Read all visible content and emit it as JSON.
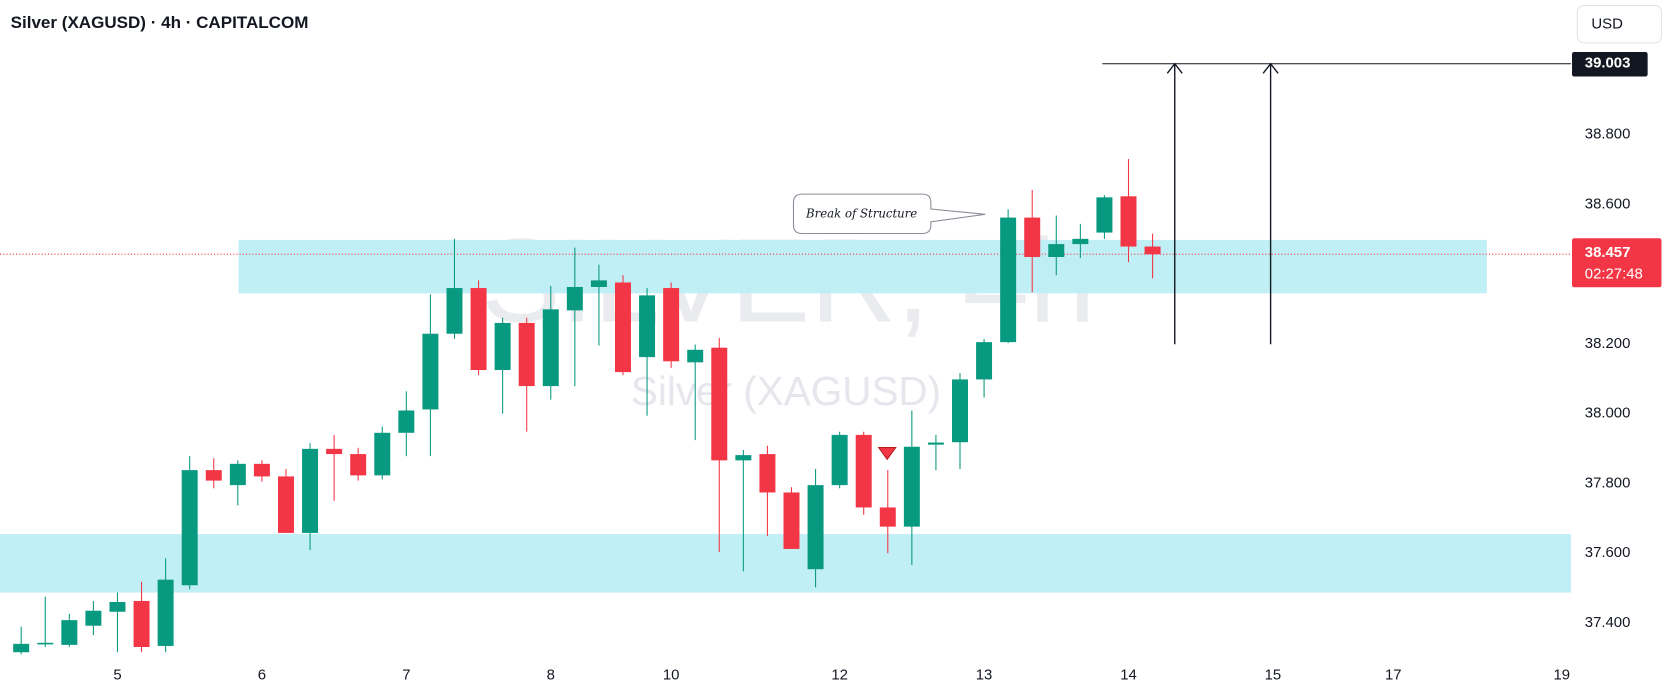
{
  "chart_data": {
    "type": "candlestick",
    "title": "Silver (XAGUSD) · 4h · CAPITALCOM",
    "currency": "USD",
    "watermark": "SILVER, 4h",
    "watermark_subtitle": "Silver (XAGUSD)",
    "annotation": "Break of Structure",
    "up_color": "#089981",
    "down_color": "#f23645",
    "zone_color": "#bdeef5",
    "open": [
      37.316,
      37.342,
      37.337,
      37.392,
      37.432,
      37.463,
      37.334,
      37.508,
      37.838,
      37.795,
      37.856,
      37.82,
      37.658,
      37.899,
      37.884,
      37.823,
      37.945,
      38.012,
      38.229,
      38.36,
      38.125,
      38.26,
      38.079,
      38.296,
      38.363,
      38.376,
      38.162,
      38.36,
      38.147,
      38.189,
      37.866,
      37.884,
      37.774,
      37.554,
      37.795,
      37.939,
      37.731,
      37.676,
      37.911,
      37.918,
      38.098,
      38.205,
      38.562,
      38.449,
      38.486,
      38.519,
      38.623,
      38.479
    ],
    "high": [
      37.389,
      37.475,
      37.426,
      37.463,
      37.487,
      37.518,
      37.585,
      37.878,
      37.872,
      37.866,
      37.866,
      37.841,
      37.915,
      37.939,
      37.902,
      37.963,
      38.064,
      38.342,
      38.501,
      38.382,
      38.275,
      38.275,
      38.366,
      38.476,
      38.427,
      38.397,
      38.36,
      38.376,
      38.198,
      38.217,
      37.896,
      37.908,
      37.789,
      37.841,
      37.948,
      37.948,
      37.838,
      38.009,
      37.939,
      38.116,
      38.214,
      38.586,
      38.641,
      38.568,
      38.544,
      38.626,
      38.73,
      38.516
    ],
    "low": [
      37.31,
      37.331,
      37.331,
      37.365,
      37.316,
      37.316,
      37.316,
      37.496,
      37.786,
      37.737,
      37.805,
      37.658,
      37.609,
      37.75,
      37.808,
      37.811,
      37.878,
      37.878,
      38.214,
      38.11,
      38.0,
      37.948,
      38.04,
      38.079,
      38.195,
      38.11,
      37.994,
      38.131,
      37.924,
      37.603,
      37.548,
      37.649,
      37.612,
      37.502,
      37.786,
      37.71,
      37.6,
      37.566,
      37.838,
      37.841,
      38.046,
      38.202,
      38.348,
      38.397,
      38.446,
      38.501,
      38.434,
      38.388
    ],
    "close": [
      37.34,
      37.343,
      37.408,
      37.435,
      37.46,
      37.331,
      37.524,
      37.838,
      37.808,
      37.856,
      37.82,
      37.658,
      37.899,
      37.884,
      37.823,
      37.945,
      38.009,
      38.229,
      38.36,
      38.125,
      38.26,
      38.079,
      38.299,
      38.363,
      38.382,
      38.119,
      38.339,
      38.15,
      38.183,
      37.866,
      37.881,
      37.774,
      37.612,
      37.795,
      37.939,
      37.731,
      37.676,
      37.905,
      37.917,
      38.098,
      38.205,
      38.562,
      38.449,
      38.486,
      38.501,
      38.62,
      38.479,
      38.457
    ],
    "xlim": [
      -0.88,
      64.38
    ],
    "xticks": [
      {
        "value": 4,
        "label": "5"
      },
      {
        "value": 10,
        "label": "6"
      },
      {
        "value": 16,
        "label": "7"
      },
      {
        "value": 22,
        "label": "8"
      },
      {
        "value": 27,
        "label": "10"
      },
      {
        "value": 34,
        "label": "12"
      },
      {
        "value": 40,
        "label": "13"
      },
      {
        "value": 46,
        "label": "14"
      },
      {
        "value": 52,
        "label": "15"
      },
      {
        "value": 57,
        "label": "17"
      },
      {
        "value": 64,
        "label": "19"
      }
    ],
    "ylim": [
      37.292,
      39.185
    ],
    "yticks": [
      {
        "value": 37.4,
        "label": "37.400"
      },
      {
        "value": 37.6,
        "label": "37.600"
      },
      {
        "value": 37.8,
        "label": "37.800"
      },
      {
        "value": 38.0,
        "label": "38.000"
      },
      {
        "value": 38.2,
        "label": "38.200"
      },
      {
        "value": 38.6,
        "label": "38.600"
      },
      {
        "value": 38.8,
        "label": "38.800"
      }
    ],
    "zones": [
      {
        "low": 38.345,
        "high": 38.498
      },
      {
        "low": 37.487,
        "high": 37.655
      }
    ],
    "target": {
      "value": 39.003,
      "label": "39.003"
    },
    "last_price": {
      "value": 38.457,
      "label": "38.457"
    },
    "countdown": "02:27:48"
  }
}
